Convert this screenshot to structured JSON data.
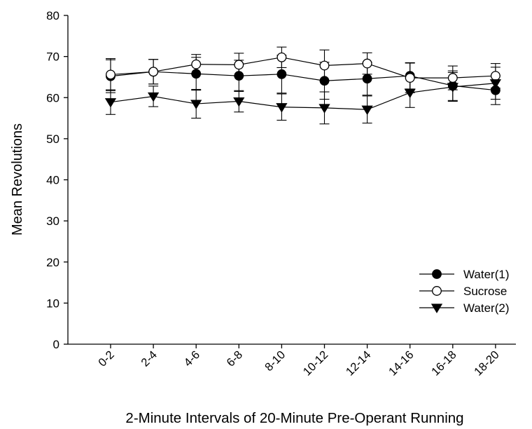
{
  "chart_data": {
    "type": "line",
    "title": "",
    "xlabel": "2-Minute Intervals of 20-Minute Pre-Operant Running",
    "ylabel": "Mean Revolutions",
    "ylim": [
      0,
      80
    ],
    "yticks": [
      0,
      10,
      20,
      30,
      40,
      50,
      60,
      70,
      80
    ],
    "categories": [
      "0-2",
      "2-4",
      "4-6",
      "6-8",
      "8-10",
      "10-12",
      "12-14",
      "14-16",
      "16-18",
      "18-20"
    ],
    "grid": false,
    "legend_position": "bottom-right",
    "series": [
      {
        "name": "Water(1)",
        "marker": "filled-circle",
        "values": [
          65.2,
          66.3,
          65.8,
          65.3,
          65.7,
          64.1,
          64.6,
          65.3,
          62.9,
          61.8
        ],
        "errors": [
          4.0,
          3.0,
          4.0,
          3.8,
          4.6,
          4.5,
          4.0,
          3.2,
          3.6,
          3.5
        ]
      },
      {
        "name": "Sucrose",
        "marker": "open-circle",
        "values": [
          65.6,
          66.3,
          68.1,
          68.0,
          69.8,
          67.8,
          68.3,
          64.8,
          64.8,
          65.3
        ],
        "errors": [
          3.9,
          3.0,
          2.4,
          2.8,
          2.5,
          3.8,
          2.6,
          3.6,
          2.9,
          3.0
        ]
      },
      {
        "name": "Water(2)",
        "marker": "filled-triangle-down",
        "values": [
          58.9,
          60.3,
          58.5,
          59.1,
          57.7,
          57.5,
          57.1,
          61.2,
          62.6,
          63.5
        ],
        "errors": [
          3.0,
          2.5,
          3.5,
          2.6,
          3.2,
          3.9,
          3.3,
          3.6,
          3.5,
          3.9
        ]
      }
    ]
  }
}
